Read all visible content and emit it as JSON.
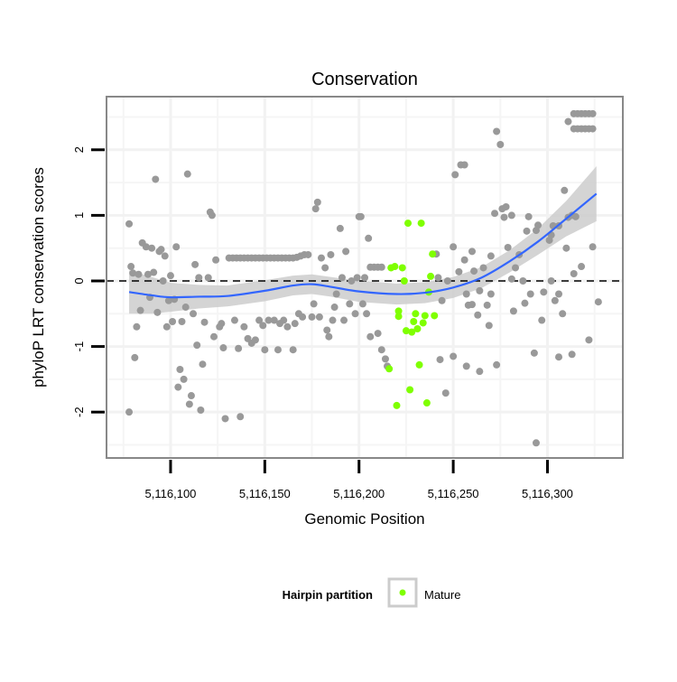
{
  "chart_data": {
    "type": "scatter",
    "title": "Conservation",
    "xlabel": "Genomic Position",
    "ylabel": "phyloP LRT conservation scores",
    "xlim": [
      5116066,
      5116340
    ],
    "ylim": [
      -2.7,
      2.81
    ],
    "x_ticks": [
      5116100,
      5116150,
      5116200,
      5116250,
      5116300
    ],
    "x_tick_labels": [
      "5,116,100",
      "5,116,150",
      "5,116,200",
      "5,116,250",
      "5,116,300"
    ],
    "y_ticks": [
      -2,
      -1,
      0,
      1,
      2
    ],
    "y_tick_labels": [
      "-2",
      "-1",
      "0",
      "1",
      "2"
    ],
    "grid": true,
    "reference_line": {
      "y": 0,
      "style": "dashed"
    },
    "legend": {
      "title": "Hairpin partition",
      "entries": [
        "Mature"
      ],
      "placement": "bottom"
    },
    "colors": {
      "other": "#999999",
      "mature": "#7fff00",
      "smooth": "#3366ff",
      "band": "#cccccc"
    },
    "series": [
      {
        "name": "Other",
        "points": [
          [
            5116078,
            -2.0
          ],
          [
            5116078,
            0.87
          ],
          [
            5116079,
            0.22
          ],
          [
            5116080,
            0.12
          ],
          [
            5116081,
            -1.17
          ],
          [
            5116082,
            -0.7
          ],
          [
            5116083,
            0.1
          ],
          [
            5116084,
            -0.45
          ],
          [
            5116085,
            0.58
          ],
          [
            5116087,
            0.52
          ],
          [
            5116088,
            0.1
          ],
          [
            5116089,
            -0.25
          ],
          [
            5116090,
            0.5
          ],
          [
            5116091,
            0.13
          ],
          [
            5116092,
            1.55
          ],
          [
            5116093,
            -0.48
          ],
          [
            5116094,
            0.45
          ],
          [
            5116095,
            0.48
          ],
          [
            5116096,
            0.0
          ],
          [
            5116097,
            0.38
          ],
          [
            5116098,
            -0.7
          ],
          [
            5116099,
            -0.3
          ],
          [
            5116100,
            0.08
          ],
          [
            5116101,
            -0.62
          ],
          [
            5116102,
            -0.28
          ],
          [
            5116103,
            0.52
          ],
          [
            5116104,
            -1.62
          ],
          [
            5116105,
            -1.35
          ],
          [
            5116106,
            -0.62
          ],
          [
            5116107,
            -1.5
          ],
          [
            5116108,
            -0.4
          ],
          [
            5116109,
            1.63
          ],
          [
            5116110,
            -1.88
          ],
          [
            5116111,
            -1.75
          ],
          [
            5116112,
            -0.5
          ],
          [
            5116113,
            0.25
          ],
          [
            5116114,
            -0.98
          ],
          [
            5116115,
            0.05
          ],
          [
            5116116,
            -1.97
          ],
          [
            5116117,
            -1.27
          ],
          [
            5116118,
            -0.63
          ],
          [
            5116120,
            0.05
          ],
          [
            5116121,
            1.05
          ],
          [
            5116122,
            1.0
          ],
          [
            5116123,
            -0.85
          ],
          [
            5116124,
            0.32
          ],
          [
            5116126,
            -0.7
          ],
          [
            5116127,
            -0.65
          ],
          [
            5116128,
            -1.02
          ],
          [
            5116129,
            -2.1
          ],
          [
            5116131,
            0.35
          ],
          [
            5116133,
            0.35
          ],
          [
            5116135,
            0.35
          ],
          [
            5116137,
            0.35
          ],
          [
            5116139,
            0.35
          ],
          [
            5116141,
            0.35
          ],
          [
            5116143,
            0.35
          ],
          [
            5116145,
            0.35
          ],
          [
            5116147,
            0.35
          ],
          [
            5116149,
            0.35
          ],
          [
            5116151,
            0.35
          ],
          [
            5116153,
            0.35
          ],
          [
            5116155,
            0.35
          ],
          [
            5116157,
            0.35
          ],
          [
            5116159,
            0.35
          ],
          [
            5116161,
            0.35
          ],
          [
            5116163,
            0.35
          ],
          [
            5116165,
            0.35
          ],
          [
            5116167,
            0.36
          ],
          [
            5116169,
            0.38
          ],
          [
            5116171,
            0.4
          ],
          [
            5116173,
            0.4
          ],
          [
            5116134,
            -0.6
          ],
          [
            5116136,
            -1.03
          ],
          [
            5116137,
            -2.07
          ],
          [
            5116139,
            -0.7
          ],
          [
            5116141,
            -0.88
          ],
          [
            5116143,
            -0.95
          ],
          [
            5116145,
            -0.9
          ],
          [
            5116147,
            -0.6
          ],
          [
            5116149,
            -0.68
          ],
          [
            5116150,
            -1.05
          ],
          [
            5116152,
            -0.6
          ],
          [
            5116155,
            -0.6
          ],
          [
            5116157,
            -1.05
          ],
          [
            5116158,
            -0.65
          ],
          [
            5116160,
            -0.6
          ],
          [
            5116162,
            -0.7
          ],
          [
            5116165,
            -1.05
          ],
          [
            5116166,
            -0.65
          ],
          [
            5116168,
            -0.5
          ],
          [
            5116170,
            -0.55
          ],
          [
            5116175,
            -0.55
          ],
          [
            5116176,
            -0.35
          ],
          [
            5116177,
            1.1
          ],
          [
            5116178,
            1.2
          ],
          [
            5116179,
            -0.55
          ],
          [
            5116180,
            0.35
          ],
          [
            5116182,
            0.2
          ],
          [
            5116183,
            -0.75
          ],
          [
            5116184,
            -0.85
          ],
          [
            5116185,
            0.4
          ],
          [
            5116186,
            -0.6
          ],
          [
            5116187,
            -0.4
          ],
          [
            5116188,
            -0.2
          ],
          [
            5116190,
            0.8
          ],
          [
            5116191,
            0.05
          ],
          [
            5116192,
            -0.6
          ],
          [
            5116193,
            0.45
          ],
          [
            5116195,
            -0.35
          ],
          [
            5116196,
            0.0
          ],
          [
            5116198,
            -0.5
          ],
          [
            5116199,
            0.05
          ],
          [
            5116200,
            0.98
          ],
          [
            5116201,
            0.98
          ],
          [
            5116202,
            -0.35
          ],
          [
            5116203,
            0.05
          ],
          [
            5116204,
            -0.5
          ],
          [
            5116205,
            0.65
          ],
          [
            5116206,
            -0.85
          ],
          [
            5116206,
            0.21
          ],
          [
            5116208,
            0.21
          ],
          [
            5116210,
            0.21
          ],
          [
            5116212,
            0.21
          ],
          [
            5116210,
            -0.8
          ],
          [
            5116212,
            -1.05
          ],
          [
            5116214,
            -1.19
          ],
          [
            5116215,
            -1.3
          ],
          [
            5116241,
            0.41
          ],
          [
            5116242,
            0.05
          ],
          [
            5116243,
            -1.2
          ],
          [
            5116244,
            -0.3
          ],
          [
            5116246,
            -1.71
          ],
          [
            5116247,
            0.0
          ],
          [
            5116250,
            0.52
          ],
          [
            5116250,
            -1.15
          ],
          [
            5116251,
            1.62
          ],
          [
            5116253,
            0.14
          ],
          [
            5116254,
            1.77
          ],
          [
            5116256,
            1.77
          ],
          [
            5116256,
            0.32
          ],
          [
            5116257,
            -0.2
          ],
          [
            5116257,
            -1.3
          ],
          [
            5116258,
            -0.37
          ],
          [
            5116260,
            0.45
          ],
          [
            5116260,
            -0.36
          ],
          [
            5116261,
            0.15
          ],
          [
            5116263,
            -0.52
          ],
          [
            5116264,
            -0.15
          ],
          [
            5116264,
            -1.38
          ],
          [
            5116266,
            0.2
          ],
          [
            5116268,
            -0.37
          ],
          [
            5116269,
            -0.68
          ],
          [
            5116270,
            0.38
          ],
          [
            5116270,
            -0.2
          ],
          [
            5116272,
            1.03
          ],
          [
            5116273,
            2.28
          ],
          [
            5116273,
            -1.28
          ],
          [
            5116275,
            2.08
          ],
          [
            5116276,
            1.1
          ],
          [
            5116277,
            0.97
          ],
          [
            5116278,
            1.13
          ],
          [
            5116279,
            0.51
          ],
          [
            5116281,
            1.0
          ],
          [
            5116281,
            0.03
          ],
          [
            5116282,
            -0.46
          ],
          [
            5116283,
            0.2
          ],
          [
            5116285,
            0.4
          ],
          [
            5116287,
            0.0
          ],
          [
            5116288,
            -0.34
          ],
          [
            5116289,
            0.76
          ],
          [
            5116290,
            0.98
          ],
          [
            5116291,
            -0.2
          ],
          [
            5116293,
            -1.1
          ],
          [
            5116294,
            0.77
          ],
          [
            5116294,
            -2.47
          ],
          [
            5116295,
            0.85
          ],
          [
            5116297,
            -0.6
          ],
          [
            5116298,
            -0.17
          ],
          [
            5116301,
            0.62
          ],
          [
            5116302,
            0.7
          ],
          [
            5116302,
            0.0
          ],
          [
            5116303,
            0.84
          ],
          [
            5116304,
            -0.3
          ],
          [
            5116306,
            0.84
          ],
          [
            5116306,
            -0.2
          ],
          [
            5116306,
            -1.16
          ],
          [
            5116308,
            -0.5
          ],
          [
            5116309,
            1.38
          ],
          [
            5116310,
            0.5
          ],
          [
            5116311,
            0.97
          ],
          [
            5116311,
            2.43
          ],
          [
            5116313,
            1.0
          ],
          [
            5116313,
            -1.12
          ],
          [
            5116314,
            0.11
          ],
          [
            5116315,
            0.98
          ],
          [
            5116318,
            0.22
          ],
          [
            5116322,
            -0.9
          ],
          [
            5116324,
            0.52
          ],
          [
            5116327,
            -0.32
          ],
          [
            5116314,
            2.55
          ],
          [
            5116316,
            2.55
          ],
          [
            5116318,
            2.55
          ],
          [
            5116320,
            2.55
          ],
          [
            5116322,
            2.55
          ],
          [
            5116324,
            2.55
          ],
          [
            5116314,
            2.32
          ],
          [
            5116316,
            2.32
          ],
          [
            5116318,
            2.32
          ],
          [
            5116320,
            2.32
          ],
          [
            5116322,
            2.32
          ],
          [
            5116324,
            2.32
          ]
        ]
      },
      {
        "name": "Mature",
        "points": [
          [
            5116226,
            0.88
          ],
          [
            5116233,
            0.88
          ],
          [
            5116239,
            0.41
          ],
          [
            5116217,
            0.2
          ],
          [
            5116219,
            0.22
          ],
          [
            5116223,
            0.2
          ],
          [
            5116238,
            0.07
          ],
          [
            5116224,
            0.0
          ],
          [
            5116237,
            -0.17
          ],
          [
            5116221,
            -0.46
          ],
          [
            5116221,
            -0.54
          ],
          [
            5116230,
            -0.5
          ],
          [
            5116235,
            -0.53
          ],
          [
            5116240,
            -0.53
          ],
          [
            5116229,
            -0.62
          ],
          [
            5116234,
            -0.64
          ],
          [
            5116231,
            -0.73
          ],
          [
            5116225,
            -0.76
          ],
          [
            5116228,
            -0.78
          ],
          [
            5116216,
            -1.34
          ],
          [
            5116232,
            -1.28
          ],
          [
            5116227,
            -1.66
          ],
          [
            5116236,
            -1.86
          ],
          [
            5116220,
            -1.9
          ]
        ]
      }
    ],
    "smooth": {
      "x": [
        5116078,
        5116090,
        5116100,
        5116115,
        5116130,
        5116150,
        5116165,
        5116175,
        5116185,
        5116200,
        5116220,
        5116235,
        5116250,
        5116265,
        5116280,
        5116295,
        5116310,
        5116326
      ],
      "y": [
        -0.17,
        -0.22,
        -0.25,
        -0.24,
        -0.23,
        -0.15,
        -0.07,
        -0.05,
        -0.09,
        -0.16,
        -0.2,
        -0.18,
        -0.1,
        0.05,
        0.3,
        0.6,
        0.95,
        1.33
      ],
      "se": [
        0.33,
        0.28,
        0.22,
        0.18,
        0.16,
        0.16,
        0.15,
        0.15,
        0.15,
        0.16,
        0.16,
        0.16,
        0.16,
        0.16,
        0.17,
        0.2,
        0.27,
        0.42
      ]
    }
  }
}
